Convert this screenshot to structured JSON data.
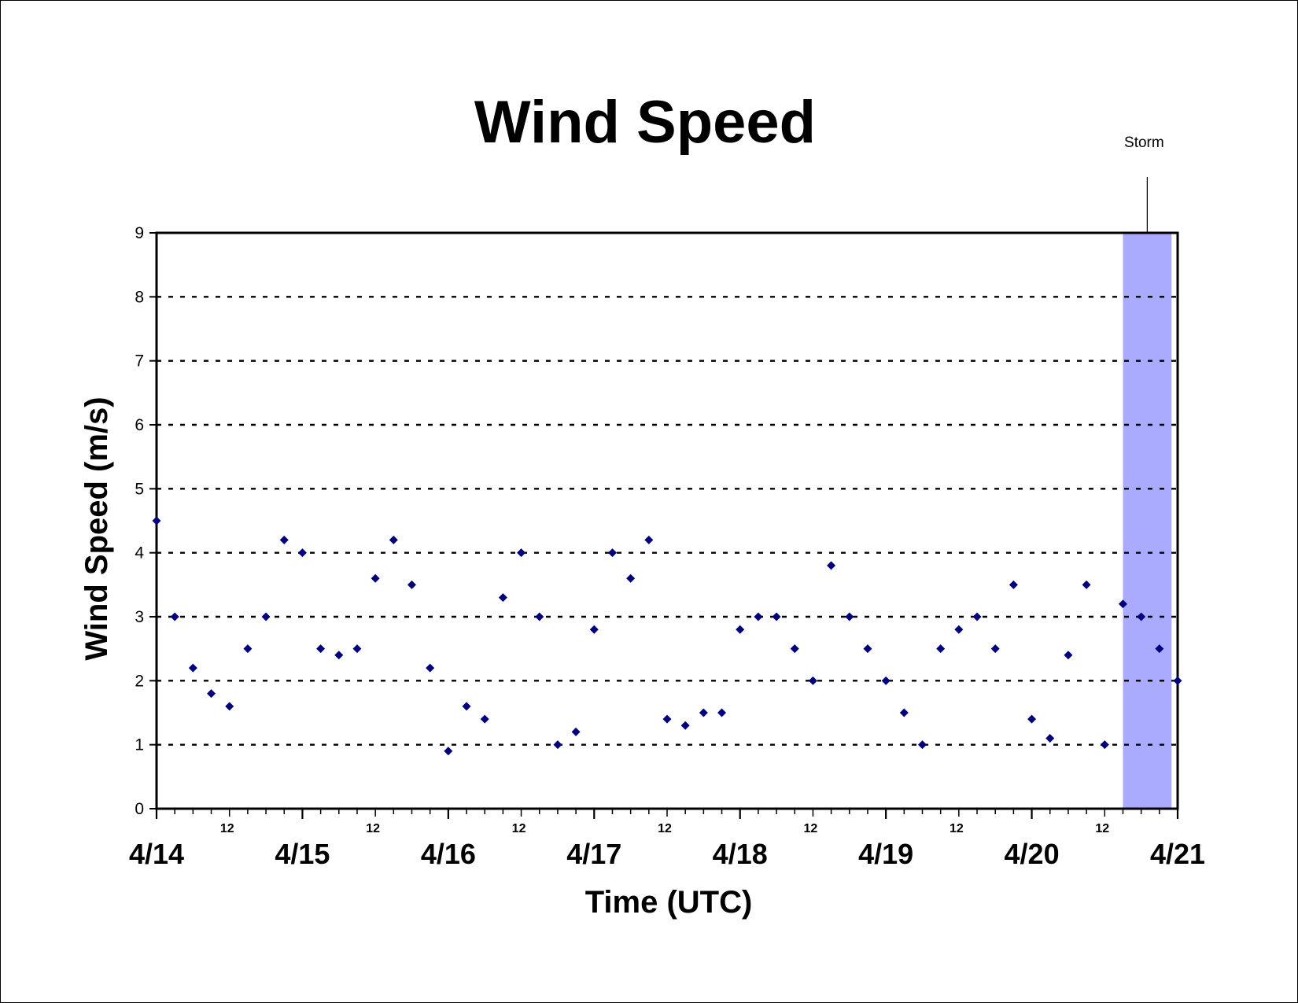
{
  "chart_data": {
    "type": "scatter",
    "title": "Wind Speed",
    "xlabel": "Time (UTC)",
    "ylabel": "Wind Speed (m/s)",
    "ylim": [
      0,
      9
    ],
    "yticks": [
      "0",
      "1",
      "2",
      "3",
      "4",
      "5",
      "6",
      "7",
      "8",
      "9"
    ],
    "xlim": [
      "4/14 00:00",
      "4/21 00:00"
    ],
    "x_major_ticks": [
      "4/14",
      "4/15",
      "4/16",
      "4/17",
      "4/18",
      "4/19",
      "4/20",
      "4/21"
    ],
    "x_minor_tick_label": "12",
    "grid": "horizontal dotted",
    "marker": "diamond",
    "colors": {
      "series": "#00007f",
      "storm_band": "#aaaaff",
      "grid": "#000000"
    },
    "annotation": {
      "text": "Storm",
      "x_start": "4/20 15:00",
      "x_end": "4/20 23:00"
    },
    "series": [
      {
        "name": "",
        "x": [
          "4/14 00:00",
          "4/14 03:00",
          "4/14 06:00",
          "4/14 09:00",
          "4/14 12:00",
          "4/14 15:00",
          "4/14 18:00",
          "4/14 21:00",
          "4/15 00:00",
          "4/15 03:00",
          "4/15 06:00",
          "4/15 09:00",
          "4/15 12:00",
          "4/15 15:00",
          "4/15 18:00",
          "4/15 21:00",
          "4/16 00:00",
          "4/16 03:00",
          "4/16 06:00",
          "4/16 09:00",
          "4/16 12:00",
          "4/16 15:00",
          "4/16 18:00",
          "4/16 21:00",
          "4/17 00:00",
          "4/17 03:00",
          "4/17 06:00",
          "4/17 09:00",
          "4/17 12:00",
          "4/17 15:00",
          "4/17 18:00",
          "4/17 21:00",
          "4/18 00:00",
          "4/18 03:00",
          "4/18 06:00",
          "4/18 09:00",
          "4/18 12:00",
          "4/18 15:00",
          "4/18 18:00",
          "4/18 21:00",
          "4/19 00:00",
          "4/19 03:00",
          "4/19 06:00",
          "4/19 09:00",
          "4/19 12:00",
          "4/19 15:00",
          "4/19 18:00",
          "4/19 21:00",
          "4/20 00:00",
          "4/20 03:00",
          "4/20 06:00",
          "4/20 09:00",
          "4/20 12:00",
          "4/20 15:00",
          "4/20 18:00",
          "4/20 21:00",
          "4/21 00:00"
        ],
        "y": [
          4.5,
          3.0,
          2.2,
          1.8,
          1.6,
          2.5,
          3.0,
          4.2,
          4.0,
          2.5,
          2.4,
          2.5,
          3.6,
          4.2,
          3.5,
          2.2,
          0.9,
          1.6,
          1.4,
          3.3,
          4.0,
          3.0,
          1.0,
          1.2,
          2.8,
          4.0,
          3.6,
          4.2,
          1.4,
          1.3,
          1.5,
          1.5,
          2.8,
          3.0,
          3.0,
          2.5,
          2.0,
          3.8,
          3.0,
          2.5,
          2.0,
          1.5,
          1.0,
          2.5,
          2.8,
          3.0,
          2.5,
          3.5,
          1.4,
          1.1,
          2.4,
          3.5,
          1.0,
          3.2,
          3.0,
          2.5,
          2.0
        ]
      }
    ]
  }
}
